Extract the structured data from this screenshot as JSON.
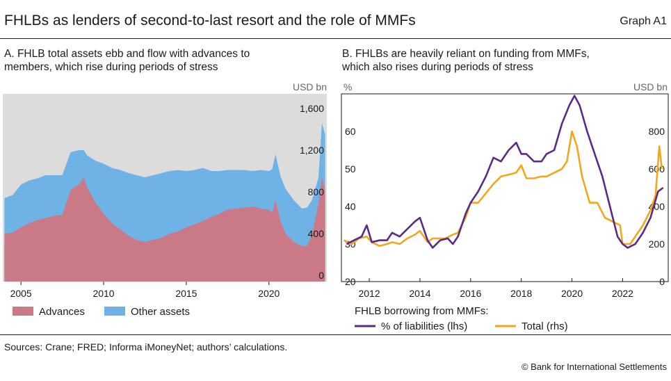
{
  "header": {
    "title": "FHLBs as lenders of second-to-last resort and the role of MMFs",
    "graph_id": "Graph A1"
  },
  "footer": {
    "sources": "Sources: Crane; FRED; Informa iMoneyNet; authors’ calculations.",
    "copyright": "© Bank for International Settlements"
  },
  "panel_a": {
    "title_line1": "A. FHLB total assets ebb and flow with advances to",
    "title_line2": "members, which rise during periods of stress",
    "unit": "USD bn",
    "legend": [
      "Advances",
      "Other assets"
    ]
  },
  "panel_b": {
    "title_line1": "B. FHLBs are heavily reliant on funding from MMFs,",
    "title_line2": "which also rises during periods of stress",
    "unit_left": "%",
    "unit_right": "USD bn",
    "legend_title": "FHLB borrowing from MMFs:",
    "legend": [
      "% of liabilities (lhs)",
      "Total (rhs)"
    ]
  },
  "colors": {
    "advances": "#c97a86",
    "other_assets": "#6fb3e6",
    "pct_liabilities": "#5b2a86",
    "total": "#f2a71b",
    "panel_bg": "#dcdcdc"
  },
  "chart_data": [
    {
      "type": "area",
      "stacked": true,
      "title": "A. FHLB total assets ebb and flow with advances to members, which rise during periods of stress",
      "ylabel": "USD bn",
      "ylim": [
        0,
        1800
      ],
      "yticks": [
        0,
        400,
        800,
        1200,
        1600
      ],
      "ytick_labels": [
        "0",
        "400",
        "800",
        "1,200",
        "1,600"
      ],
      "xlim": [
        2003.9,
        2023.5
      ],
      "xticks": [
        2005,
        2010,
        2015,
        2020
      ],
      "x": [
        2004.0,
        2004.5,
        2005.0,
        2005.5,
        2006.0,
        2006.5,
        2007.0,
        2007.5,
        2008.0,
        2008.5,
        2008.8,
        2009.0,
        2009.5,
        2010.0,
        2010.5,
        2011.0,
        2011.5,
        2012.0,
        2012.5,
        2013.0,
        2013.5,
        2014.0,
        2014.5,
        2015.0,
        2015.5,
        2016.0,
        2016.5,
        2017.0,
        2017.5,
        2018.0,
        2018.5,
        2019.0,
        2019.5,
        2020.0,
        2020.2,
        2020.4,
        2020.7,
        2021.0,
        2021.5,
        2022.0,
        2022.3,
        2022.6,
        2023.0,
        2023.2,
        2023.4
      ],
      "series": [
        {
          "name": "Advances",
          "values": [
            460,
            470,
            520,
            560,
            590,
            610,
            630,
            640,
            880,
            930,
            1000,
            900,
            760,
            650,
            560,
            500,
            440,
            400,
            380,
            400,
            420,
            460,
            480,
            520,
            550,
            580,
            620,
            650,
            690,
            700,
            710,
            720,
            700,
            690,
            660,
            780,
            580,
            460,
            380,
            340,
            340,
            450,
            750,
            1000,
            880
          ]
        },
        {
          "name": "Other assets",
          "values": [
            340,
            360,
            410,
            410,
            400,
            410,
            390,
            380,
            360,
            330,
            260,
            310,
            400,
            480,
            530,
            570,
            600,
            620,
            620,
            620,
            620,
            600,
            590,
            540,
            520,
            510,
            440,
            410,
            380,
            370,
            360,
            340,
            370,
            370,
            420,
            440,
            430,
            430,
            400,
            360,
            370,
            330,
            250,
            520,
            530
          ]
        }
      ]
    },
    {
      "type": "line",
      "title": "B. FHLBs are heavily reliant on funding from MMFs, which also rises during periods of stress",
      "ylabel_left": "%",
      "ylabel_right": "USD bn",
      "ylim_left": [
        20,
        70
      ],
      "yticks_left": [
        20,
        30,
        40,
        50,
        60
      ],
      "ylim_right": [
        0,
        1000
      ],
      "yticks_right": [
        0,
        200,
        400,
        600,
        800
      ],
      "xlim": [
        2010.9,
        2023.8
      ],
      "xticks": [
        2012,
        2014,
        2016,
        2018,
        2020,
        2022
      ],
      "series": [
        {
          "name": "% of liabilities (lhs)",
          "axis": "left",
          "x": [
            2011.1,
            2011.4,
            2011.7,
            2011.9,
            2012.1,
            2012.4,
            2012.7,
            2012.9,
            2013.2,
            2013.5,
            2013.8,
            2014.0,
            2014.3,
            2014.5,
            2014.8,
            2015.1,
            2015.3,
            2015.5,
            2015.8,
            2016.0,
            2016.3,
            2016.6,
            2016.9,
            2017.2,
            2017.5,
            2017.8,
            2018.0,
            2018.2,
            2018.5,
            2018.8,
            2019.0,
            2019.3,
            2019.6,
            2019.9,
            2020.1,
            2020.3,
            2020.6,
            2020.9,
            2021.2,
            2021.5,
            2021.8,
            2022.0,
            2022.2,
            2022.5,
            2022.8,
            2023.1,
            2023.4,
            2023.6
          ],
          "values": [
            30,
            31,
            32,
            35,
            30.5,
            31,
            31,
            33,
            32,
            34,
            36,
            37,
            31,
            29,
            31,
            31.5,
            30,
            32,
            38,
            41,
            44,
            48,
            53,
            52,
            55,
            57,
            54,
            54,
            52,
            52,
            54,
            55,
            62,
            67,
            69.5,
            67,
            60,
            54,
            48,
            40,
            32,
            30,
            29,
            30,
            33,
            37,
            44,
            45
          ]
        },
        {
          "name": "Total (rhs)",
          "axis": "right",
          "x": [
            2011.0,
            2011.3,
            2011.6,
            2011.9,
            2012.1,
            2012.4,
            2012.7,
            2012.9,
            2013.2,
            2013.5,
            2013.8,
            2014.0,
            2014.3,
            2014.5,
            2014.7,
            2015.0,
            2015.3,
            2015.5,
            2015.8,
            2016.0,
            2016.3,
            2016.6,
            2016.9,
            2017.2,
            2017.5,
            2017.8,
            2018.0,
            2018.2,
            2018.5,
            2018.8,
            2019.0,
            2019.3,
            2019.6,
            2019.8,
            2020.0,
            2020.2,
            2020.4,
            2020.7,
            2021.0,
            2021.3,
            2021.6,
            2021.9,
            2022.0,
            2022.3,
            2022.5,
            2022.8,
            2023.1,
            2023.3,
            2023.45,
            2023.55
          ],
          "values": [
            220,
            200,
            230,
            240,
            210,
            190,
            200,
            210,
            200,
            230,
            250,
            270,
            210,
            230,
            230,
            230,
            250,
            260,
            340,
            420,
            420,
            470,
            520,
            560,
            570,
            580,
            620,
            550,
            550,
            560,
            560,
            580,
            600,
            640,
            800,
            720,
            560,
            420,
            420,
            340,
            320,
            300,
            200,
            200,
            240,
            300,
            380,
            460,
            720,
            600
          ]
        }
      ]
    }
  ]
}
